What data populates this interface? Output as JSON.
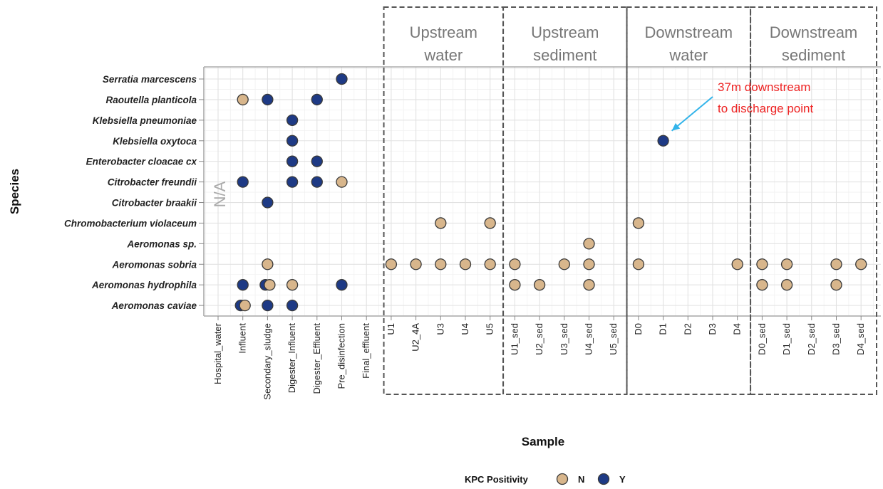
{
  "chart_data": {
    "type": "scatter",
    "xlabel": "Sample",
    "ylabel": "Species",
    "grid": true,
    "legend_position": "bottom",
    "x_categories": [
      "Hospital_water",
      "Influent",
      "Secondary_sludge",
      "Digester_Influent",
      "Digester_Effluent",
      "Pre_disinfection",
      "Final_effluent",
      "U1",
      "U2_4A",
      "U3",
      "U4",
      "U5",
      "U1_sed",
      "U2_sed",
      "U3_sed",
      "U4_sed",
      "U5_sed",
      "D0",
      "D1",
      "D2",
      "D3",
      "D4",
      "D0_sed",
      "D1_sed",
      "D2_sed",
      "D3_sed",
      "D4_sed"
    ],
    "y_categories": [
      "Serratia marcescens",
      "Raoutella planticola",
      "Klebsiella pneumoniae",
      "Klebsiella oxytoca",
      "Enterobacter cloacae cx",
      "Citrobacter freundii",
      "Citrobacter braakii",
      "Chromobacterium violaceum",
      "Aeromonas sp.",
      "Aeromonas sobria",
      "Aeromonas hydrophila",
      "Aeromonas caviae"
    ],
    "legend": {
      "title": "KPC Positivity",
      "entries": [
        {
          "label": "N",
          "color": "#d8b68c"
        },
        {
          "label": "Y",
          "color": "#1e3a85"
        }
      ]
    },
    "groups": [
      {
        "label_lines": [
          "Upstream",
          "water"
        ],
        "from": "U1",
        "to": "U5"
      },
      {
        "label_lines": [
          "Upstream",
          "sediment"
        ],
        "from": "U1_sed",
        "to": "U5_sed"
      },
      {
        "label_lines": [
          "Downstream",
          "water"
        ],
        "from": "D0",
        "to": "D4"
      },
      {
        "label_lines": [
          "Downstream",
          "sediment"
        ],
        "from": "D0_sed",
        "to": "D4_sed"
      }
    ],
    "na_label": "N/A",
    "annotation": {
      "lines": [
        "37m downstream",
        "to discharge point"
      ],
      "target_x": "D1",
      "target_y": "Klebsiella oxytoca"
    },
    "points": [
      {
        "x": "Pre_disinfection",
        "y": "Serratia marcescens",
        "kpc": "Y"
      },
      {
        "x": "Influent",
        "y": "Raoutella planticola",
        "kpc": "N"
      },
      {
        "x": "Secondary_sludge",
        "y": "Raoutella planticola",
        "kpc": "Y"
      },
      {
        "x": "Digester_Effluent",
        "y": "Raoutella planticola",
        "kpc": "Y"
      },
      {
        "x": "Digester_Influent",
        "y": "Klebsiella pneumoniae",
        "kpc": "Y"
      },
      {
        "x": "Digester_Influent",
        "y": "Klebsiella oxytoca",
        "kpc": "Y"
      },
      {
        "x": "D1",
        "y": "Klebsiella oxytoca",
        "kpc": "Y"
      },
      {
        "x": "Digester_Influent",
        "y": "Enterobacter cloacae cx",
        "kpc": "Y"
      },
      {
        "x": "Digester_Effluent",
        "y": "Enterobacter cloacae cx",
        "kpc": "Y"
      },
      {
        "x": "Influent",
        "y": "Citrobacter freundii",
        "kpc": "Y"
      },
      {
        "x": "Digester_Influent",
        "y": "Citrobacter freundii",
        "kpc": "Y"
      },
      {
        "x": "Digester_Effluent",
        "y": "Citrobacter freundii",
        "kpc": "Y"
      },
      {
        "x": "Pre_disinfection",
        "y": "Citrobacter freundii",
        "kpc": "N"
      },
      {
        "x": "Secondary_sludge",
        "y": "Citrobacter braakii",
        "kpc": "Y"
      },
      {
        "x": "U3",
        "y": "Chromobacterium violaceum",
        "kpc": "N"
      },
      {
        "x": "U5",
        "y": "Chromobacterium violaceum",
        "kpc": "N"
      },
      {
        "x": "D0",
        "y": "Chromobacterium violaceum",
        "kpc": "N"
      },
      {
        "x": "U4_sed",
        "y": "Aeromonas sp.",
        "kpc": "N"
      },
      {
        "x": "Secondary_sludge",
        "y": "Aeromonas sobria",
        "kpc": "N"
      },
      {
        "x": "U1",
        "y": "Aeromonas sobria",
        "kpc": "N"
      },
      {
        "x": "U2_4A",
        "y": "Aeromonas sobria",
        "kpc": "N"
      },
      {
        "x": "U3",
        "y": "Aeromonas sobria",
        "kpc": "N"
      },
      {
        "x": "U4",
        "y": "Aeromonas sobria",
        "kpc": "N"
      },
      {
        "x": "U5",
        "y": "Aeromonas sobria",
        "kpc": "N"
      },
      {
        "x": "U1_sed",
        "y": "Aeromonas sobria",
        "kpc": "N"
      },
      {
        "x": "U3_sed",
        "y": "Aeromonas sobria",
        "kpc": "N"
      },
      {
        "x": "U4_sed",
        "y": "Aeromonas sobria",
        "kpc": "N"
      },
      {
        "x": "D0",
        "y": "Aeromonas sobria",
        "kpc": "N"
      },
      {
        "x": "D4",
        "y": "Aeromonas sobria",
        "kpc": "N"
      },
      {
        "x": "D0_sed",
        "y": "Aeromonas sobria",
        "kpc": "N"
      },
      {
        "x": "D1_sed",
        "y": "Aeromonas sobria",
        "kpc": "N"
      },
      {
        "x": "D3_sed",
        "y": "Aeromonas sobria",
        "kpc": "N"
      },
      {
        "x": "D4_sed",
        "y": "Aeromonas sobria",
        "kpc": "N"
      },
      {
        "x": "Influent",
        "y": "Aeromonas hydrophila",
        "kpc": "Y"
      },
      {
        "x": "Secondary_sludge",
        "y": "Aeromonas hydrophila",
        "kpc": "Y"
      },
      {
        "x": "Secondary_sludge",
        "y": "Aeromonas hydrophila",
        "kpc": "N"
      },
      {
        "x": "Digester_Influent",
        "y": "Aeromonas hydrophila",
        "kpc": "N"
      },
      {
        "x": "Pre_disinfection",
        "y": "Aeromonas hydrophila",
        "kpc": "Y"
      },
      {
        "x": "U1_sed",
        "y": "Aeromonas hydrophila",
        "kpc": "N"
      },
      {
        "x": "U2_sed",
        "y": "Aeromonas hydrophila",
        "kpc": "N"
      },
      {
        "x": "U4_sed",
        "y": "Aeromonas hydrophila",
        "kpc": "N"
      },
      {
        "x": "D0_sed",
        "y": "Aeromonas hydrophila",
        "kpc": "N"
      },
      {
        "x": "D1_sed",
        "y": "Aeromonas hydrophila",
        "kpc": "N"
      },
      {
        "x": "D3_sed",
        "y": "Aeromonas hydrophila",
        "kpc": "N"
      },
      {
        "x": "Influent",
        "y": "Aeromonas caviae",
        "kpc": "Y"
      },
      {
        "x": "Influent",
        "y": "Aeromonas caviae",
        "kpc": "N"
      },
      {
        "x": "Secondary_sludge",
        "y": "Aeromonas caviae",
        "kpc": "Y"
      },
      {
        "x": "Digester_Influent",
        "y": "Aeromonas caviae",
        "kpc": "Y"
      }
    ]
  }
}
